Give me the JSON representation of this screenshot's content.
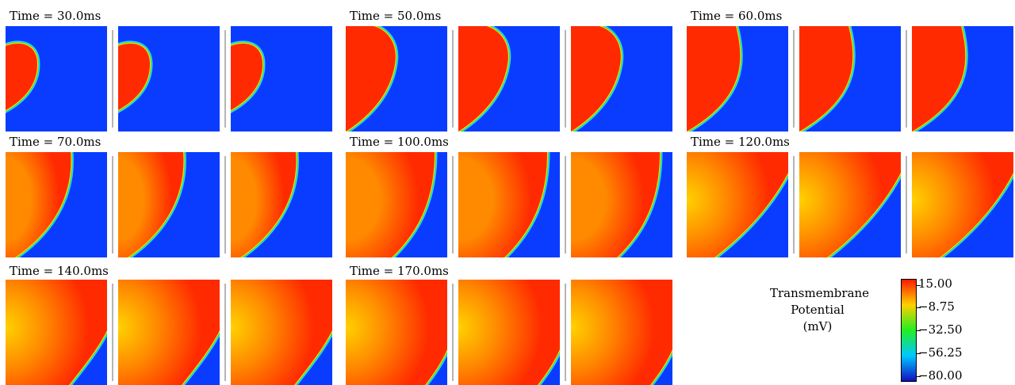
{
  "figure": {
    "panels_per_time": 3,
    "time_labels": [
      "Time = 30.0ms",
      "Time = 50.0ms",
      "Time = 60.0ms",
      "Time = 70.0ms",
      "Time = 100.0ms",
      "Time = 120.0ms",
      "Time = 140.0ms",
      "Time = 170.0ms"
    ],
    "colors": {
      "resting": "#0a3cff",
      "depolarized": "#ff2a00",
      "front_green": "#22e06a",
      "front_cyan": "#2ad4ff",
      "front_yellow": "#f0e000",
      "center_yellow": "#ffd200",
      "center_orange": "#ff8a00"
    }
  },
  "colorbar": {
    "title_lines": [
      "Transmembrane",
      "Potential",
      "(mV)"
    ],
    "ticks": [
      "15.00",
      "−8.75",
      "−32.50",
      "−56.25",
      "−80.00"
    ],
    "colors": [
      "#ff1a00",
      "#ffd000",
      "#22ee22",
      "#00c8ff",
      "#1010c0"
    ]
  }
}
